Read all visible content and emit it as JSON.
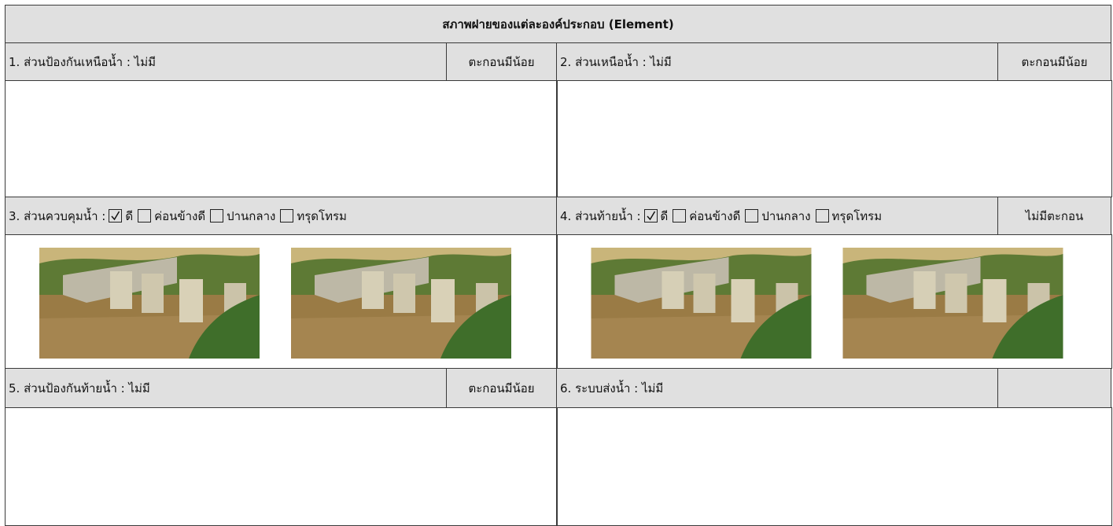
{
  "header": {
    "title": "สภาพฝายของแต่ละองค์ประกอบ (Element)"
  },
  "sections": [
    {
      "label": "1. ส่วนป้องกันเหนือน้ำ : ไม่มี",
      "status": "ตะกอนมีน้อย"
    },
    {
      "label": "2. ส่วนเหนือน้ำ : ไม่มี",
      "status": "ตะกอนมีน้อย"
    },
    {
      "label": "3. ส่วนควบคุมน้ำ :",
      "options": [
        {
          "checked": true,
          "label": "ดี"
        },
        {
          "checked": false,
          "label": "ค่อนข้างดี"
        },
        {
          "checked": false,
          "label": "ปานกลาง"
        },
        {
          "checked": false,
          "label": "ทรุดโทรม"
        }
      ]
    },
    {
      "label": "4. ส่วนท้ายน้ำ :",
      "options": [
        {
          "checked": true,
          "label": "ดี"
        },
        {
          "checked": false,
          "label": "ค่อนข้างดี"
        },
        {
          "checked": false,
          "label": "ปานกลาง"
        },
        {
          "checked": false,
          "label": "ทรุดโทรม"
        }
      ],
      "status": "ไม่มีตะกอน"
    },
    {
      "label": "5. ส่วนป้องกันท้ายน้ำ : ไม่มี",
      "status": "ตะกอนมีน้อย"
    },
    {
      "label": "6. ระบบส่งน้ำ : ไม่มี"
    }
  ]
}
